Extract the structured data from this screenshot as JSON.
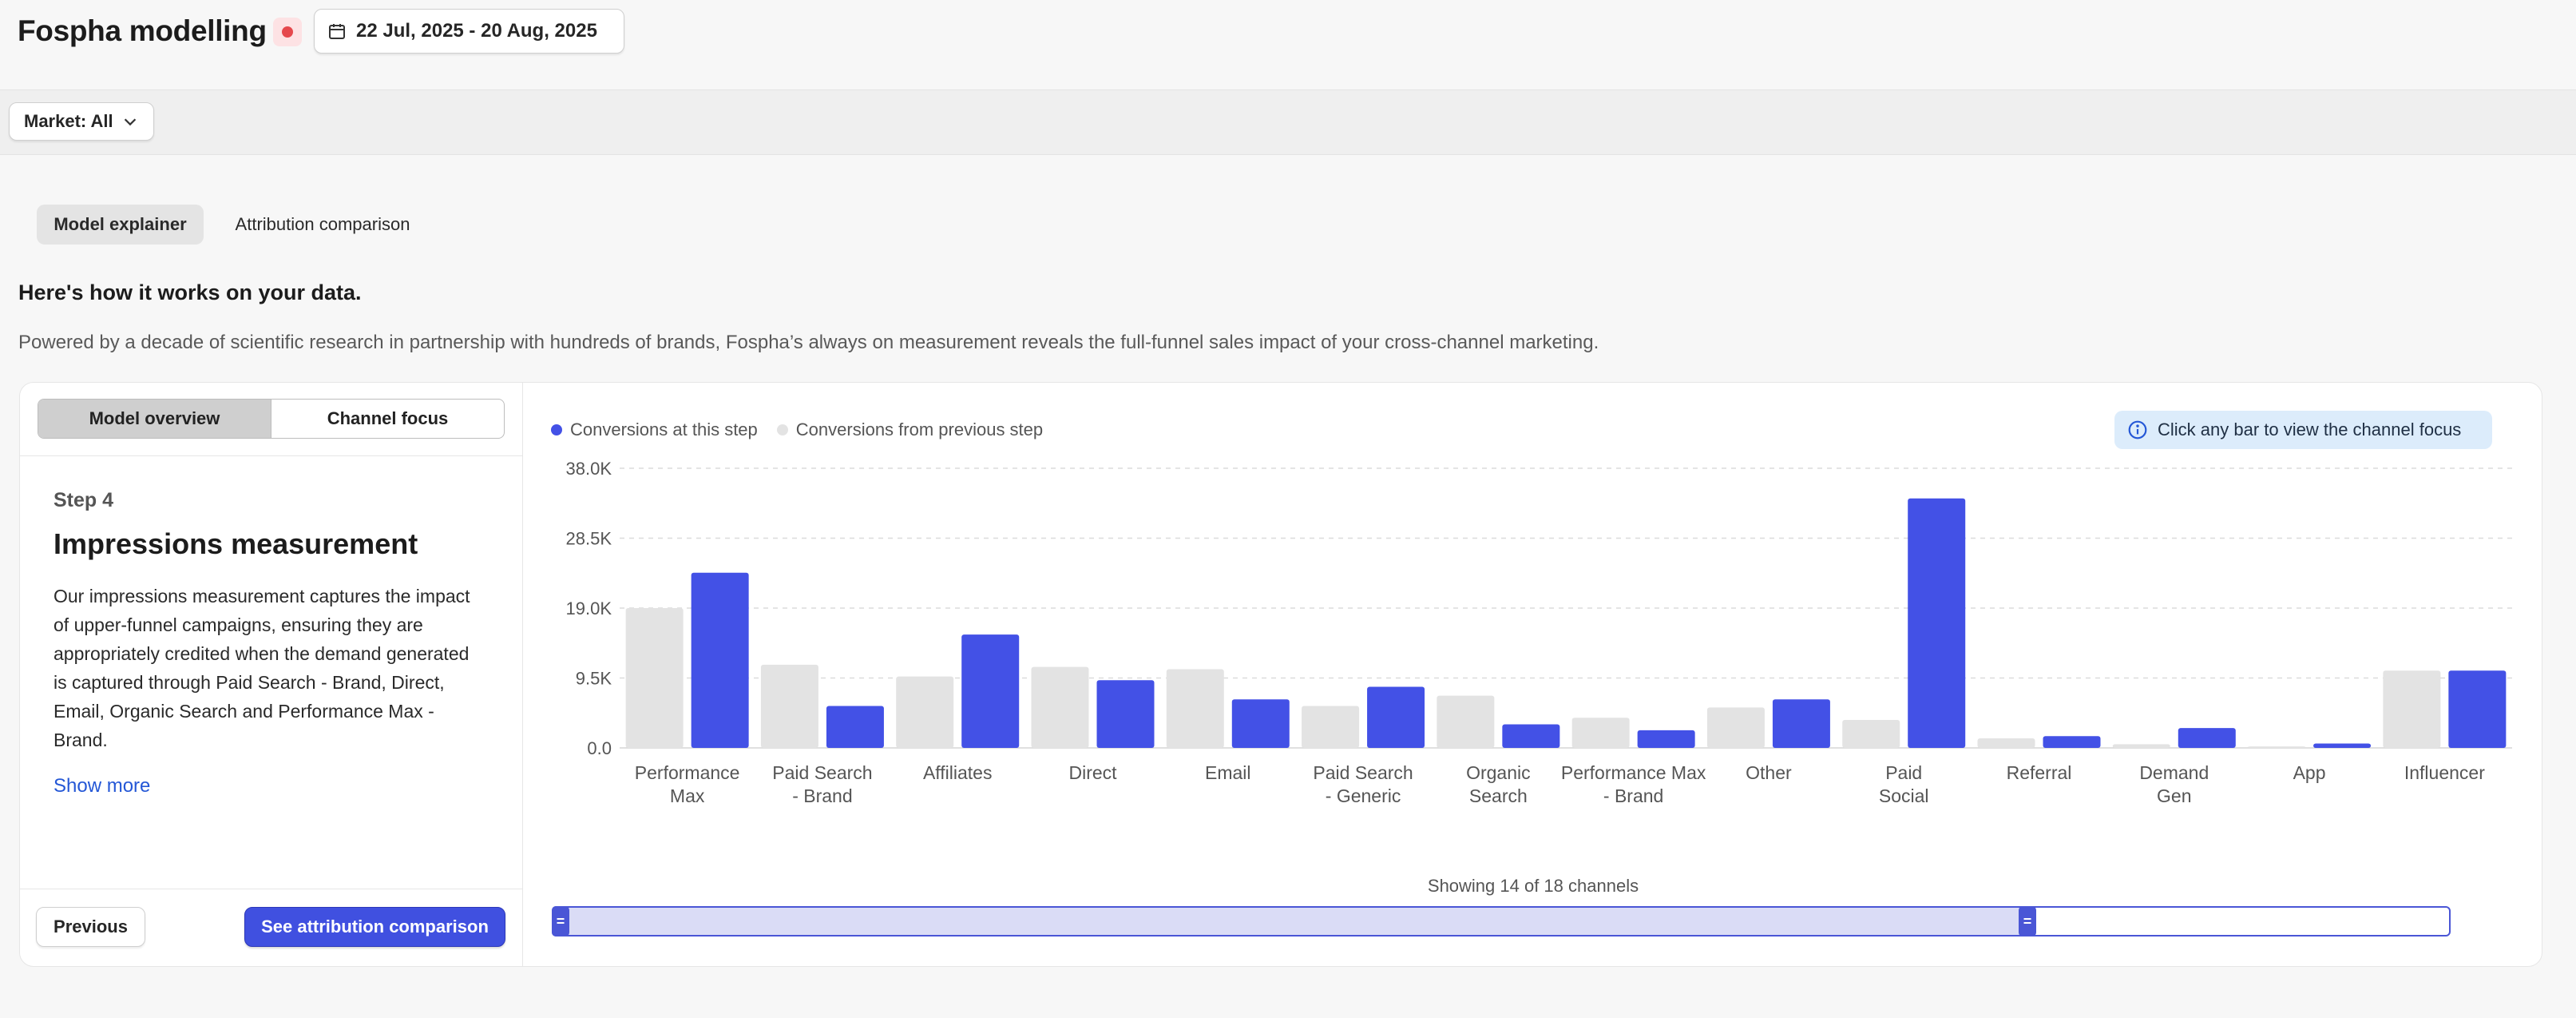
{
  "header": {
    "title": "Fospha modelling",
    "date_range": "22 Jul, 2025 - 20 Aug, 2025"
  },
  "filters": {
    "market_label": "Market: All"
  },
  "tabs": [
    {
      "label": "Model explainer",
      "active": true
    },
    {
      "label": "Attribution comparison",
      "active": false
    }
  ],
  "intro": {
    "heading": "Here's how it works on your data.",
    "description": "Powered by a decade of scientific research in partnership with hundreds of brands, Fospha’s always on measurement reveals the full-funnel sales impact of your cross-channel marketing."
  },
  "panel": {
    "segments": [
      {
        "label": "Model overview",
        "active": true
      },
      {
        "label": "Channel focus",
        "active": false
      }
    ],
    "step_label": "Step 4",
    "step_title": "Impressions measurement",
    "step_body": "Our impressions measurement captures the impact of upper-funnel campaigns, ensuring they are appropriately credited when the demand generated is captured through Paid Search - Brand, Direct, Email, Organic Search and Performance Max - Brand.",
    "show_more": "Show more",
    "previous_label": "Previous",
    "next_label": "See attribution comparison"
  },
  "hint": "Click any bar to view the channel focus",
  "scroller": {
    "label": "Showing 14 of 18 channels",
    "visible_fraction": 0.7778,
    "handle_glyph": "="
  },
  "colors": {
    "current": "#4351e6",
    "previous": "#e3e3e3",
    "accent": "#4050e0"
  },
  "chart_data": {
    "type": "bar",
    "ylim": [
      0,
      38000
    ],
    "yticks": [
      "0.0",
      "9.5K",
      "19.0K",
      "28.5K",
      "38.0K"
    ],
    "ytick_values": [
      0,
      9500,
      19000,
      28500,
      38000
    ],
    "grid": true,
    "legend_position": "top-left",
    "categories": [
      [
        "Performance",
        "Max"
      ],
      [
        "Paid Search",
        "- Brand"
      ],
      [
        "Affiliates"
      ],
      [
        "Direct"
      ],
      [
        "Email"
      ],
      [
        "Paid Search",
        "- Generic"
      ],
      [
        "Organic",
        "Search"
      ],
      [
        "Performance Max",
        "- Brand"
      ],
      [
        "Other"
      ],
      [
        "Paid",
        "Social"
      ],
      [
        "Referral"
      ],
      [
        "Demand",
        "Gen"
      ],
      [
        "App"
      ],
      [
        "Influencer"
      ]
    ],
    "series": [
      {
        "name": "Conversions at this step",
        "color": "#4351e6",
        "values": [
          23800,
          5700,
          15400,
          9200,
          6600,
          8300,
          3200,
          2400,
          6600,
          33900,
          1600,
          2700,
          600,
          10500
        ]
      },
      {
        "name": "Conversions from previous step",
        "color": "#e3e3e3",
        "values": [
          19000,
          11300,
          9700,
          11000,
          10700,
          5700,
          7100,
          4100,
          5500,
          3800,
          1300,
          500,
          200,
          10500
        ]
      }
    ]
  }
}
